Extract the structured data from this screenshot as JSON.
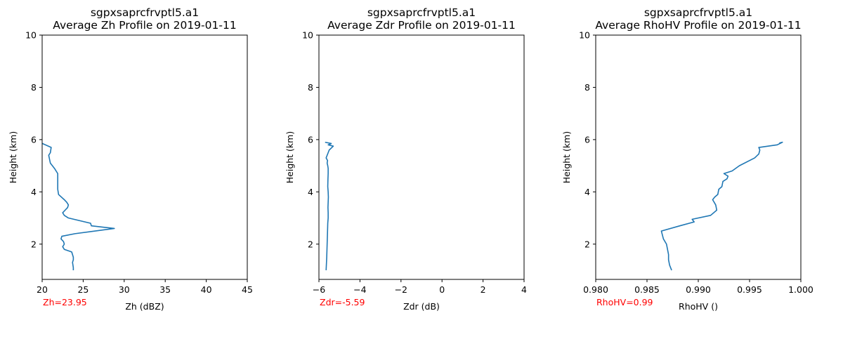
{
  "chart_data": [
    {
      "type": "line",
      "title": "sgpxsaprcfrvptl5.a1",
      "subtitle": "Average Zh Profile on 2019-01-11",
      "xlabel": "Zh (dBZ)",
      "ylabel": "Height (km)",
      "xlim": [
        20,
        45
      ],
      "ylim": [
        0.65,
        10
      ],
      "xticks": [
        "20",
        "25",
        "30",
        "35",
        "40",
        "45"
      ],
      "yticks": [
        "2",
        "4",
        "6",
        "8",
        "10"
      ],
      "annotation": "Zh=23.95",
      "annotation_color": "#ff0000",
      "line_color": "#1f77b4",
      "grid": false,
      "series": [
        {
          "x": [
            23.8,
            23.8,
            23.7,
            23.8,
            23.8,
            23.7,
            23.6,
            22.7,
            22.5,
            22.7,
            22.6,
            22.3,
            22.4,
            24.0,
            28.8,
            26.0,
            25.9,
            23.2,
            22.7,
            22.5,
            22.8,
            23.1,
            23.2,
            23.0,
            22.7,
            22.0,
            21.9,
            21.9,
            21.9,
            21.9,
            21.5,
            21.0,
            20.8,
            21.0,
            21.1,
            19.7
          ],
          "y": [
            1.0,
            1.1,
            1.3,
            1.4,
            1.5,
            1.6,
            1.7,
            1.8,
            1.9,
            2.0,
            2.1,
            2.2,
            2.3,
            2.4,
            2.6,
            2.7,
            2.8,
            3.0,
            3.1,
            3.2,
            3.3,
            3.4,
            3.5,
            3.6,
            3.7,
            3.9,
            4.1,
            4.3,
            4.5,
            4.7,
            4.9,
            5.1,
            5.4,
            5.5,
            5.7,
            5.9
          ]
        }
      ]
    },
    {
      "type": "line",
      "title": "sgpxsaprcfrvptl5.a1",
      "subtitle": "Average Zdr Profile on 2019-01-11",
      "xlabel": "Zdr (dB)",
      "ylabel": "Height (km)",
      "xlim": [
        -6,
        4
      ],
      "ylim": [
        0.65,
        10
      ],
      "xticks": [
        "−6",
        "−4",
        "−2",
        "0",
        "2",
        "4"
      ],
      "yticks": [
        "2",
        "4",
        "6",
        "8",
        "10"
      ],
      "annotation": "Zdr=-5.59",
      "annotation_color": "#ff0000",
      "line_color": "#1f77b4",
      "grid": false,
      "series": [
        {
          "x": [
            -5.65,
            -5.62,
            -5.6,
            -5.58,
            -5.57,
            -5.55,
            -5.55,
            -5.56,
            -5.55,
            -5.54,
            -5.55,
            -5.57,
            -5.56,
            -5.55,
            -5.55,
            -5.57,
            -5.6,
            -5.58,
            -5.65,
            -5.55,
            -5.5,
            -5.3,
            -5.55,
            -5.4,
            -5.7
          ],
          "y": [
            1.0,
            1.5,
            2.0,
            2.5,
            2.8,
            3.0,
            3.2,
            3.4,
            3.6,
            3.8,
            4.0,
            4.2,
            4.5,
            4.7,
            4.9,
            5.0,
            5.1,
            5.2,
            5.3,
            5.5,
            5.6,
            5.75,
            5.8,
            5.85,
            5.9
          ]
        }
      ]
    },
    {
      "type": "line",
      "title": "sgpxsaprcfrvptl5.a1",
      "subtitle": "Average RhoHV Profile on 2019-01-11",
      "xlabel": "RhoHV ()",
      "ylabel": "Height (km)",
      "xlim": [
        0.98,
        1.0
      ],
      "ylim": [
        0.65,
        10
      ],
      "xticks": [
        "0.980",
        "0.985",
        "0.990",
        "0.995",
        "1.000"
      ],
      "yticks": [
        "2",
        "4",
        "6",
        "8",
        "10"
      ],
      "annotation": "RhoHV=0.99",
      "annotation_color": "#ff0000",
      "line_color": "#1f77b4",
      "grid": false,
      "series": [
        {
          "x": [
            0.9874,
            0.9872,
            0.9871,
            0.9871,
            0.987,
            0.9869,
            0.9866,
            0.9864,
            0.9882,
            0.9896,
            0.9894,
            0.9912,
            0.9918,
            0.9917,
            0.9914,
            0.9916,
            0.9919,
            0.992,
            0.9923,
            0.9924,
            0.9928,
            0.9929,
            0.9925,
            0.9933,
            0.994,
            0.9955,
            0.9959,
            0.996,
            0.9959,
            0.9977,
            0.9982,
            0.9979
          ],
          "y": [
            1.0,
            1.2,
            1.4,
            1.6,
            1.8,
            2.0,
            2.2,
            2.5,
            2.7,
            2.85,
            2.95,
            3.1,
            3.3,
            3.5,
            3.7,
            3.8,
            3.9,
            4.1,
            4.2,
            4.4,
            4.5,
            4.6,
            4.7,
            4.8,
            5.0,
            5.3,
            5.45,
            5.6,
            5.7,
            5.8,
            5.9,
            5.87
          ]
        }
      ]
    }
  ]
}
